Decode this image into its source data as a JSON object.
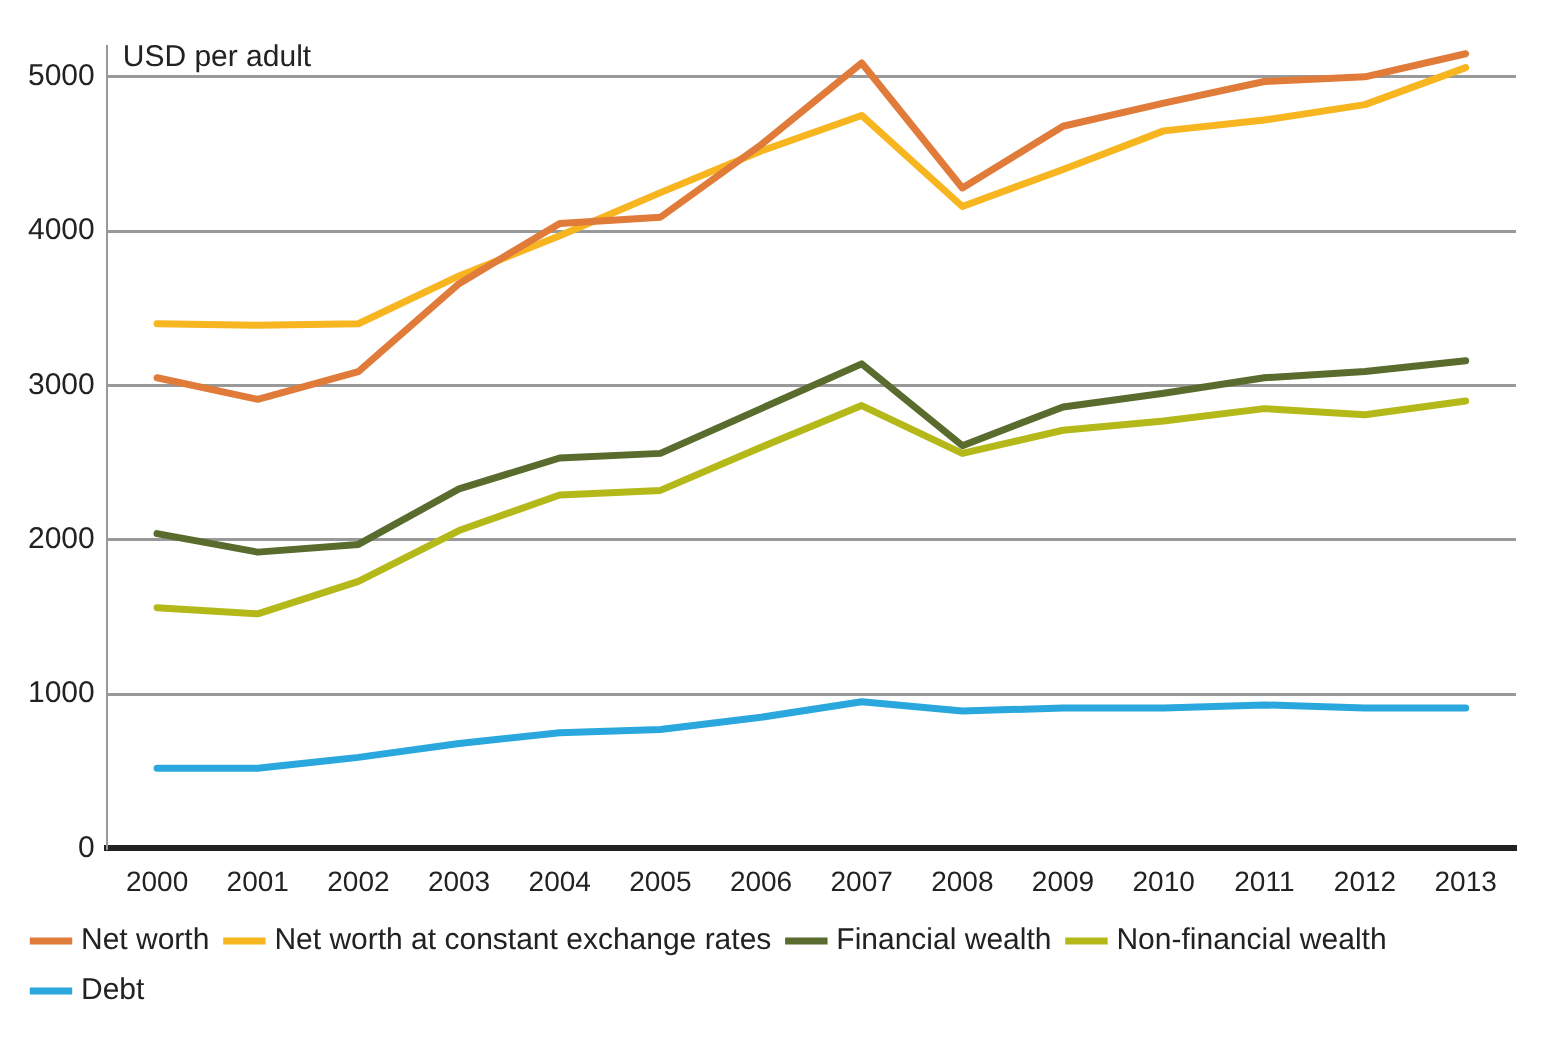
{
  "chart_data": {
    "type": "line",
    "ylabel": "USD per adult",
    "categories": [
      "2000",
      "2001",
      "2002",
      "2003",
      "2004",
      "2005",
      "2006",
      "2007",
      "2008",
      "2009",
      "2010",
      "2011",
      "2012",
      "2013"
    ],
    "series": [
      {
        "name": "Net worth",
        "color": "#e07b39",
        "values": [
          3050,
          2910,
          3090,
          3660,
          4050,
          4090,
          4560,
          5090,
          4280,
          4680,
          4830,
          4970,
          5000,
          5150
        ]
      },
      {
        "name": "Net worth at constant exchange rates",
        "color": "#f7b520",
        "values": [
          3400,
          3390,
          3400,
          3710,
          3970,
          4250,
          4520,
          4750,
          4160,
          4400,
          4650,
          4720,
          4820,
          5060
        ]
      },
      {
        "name": "Financial wealth",
        "color": "#5a6b2e",
        "values": [
          2040,
          1920,
          1970,
          2330,
          2530,
          2560,
          2850,
          3140,
          2610,
          2860,
          2950,
          3050,
          3090,
          3160
        ]
      },
      {
        "name": "Non-financial wealth",
        "color": "#b5b819",
        "values": [
          1560,
          1520,
          1730,
          2060,
          2290,
          2320,
          2600,
          2870,
          2560,
          2710,
          2770,
          2850,
          2810,
          2900
        ]
      },
      {
        "name": "Debt",
        "color": "#2aa8de",
        "values": [
          520,
          520,
          590,
          680,
          750,
          770,
          850,
          950,
          890,
          910,
          910,
          930,
          910,
          910
        ]
      }
    ],
    "ylim": [
      0,
      5200
    ],
    "yticks": [
      0,
      1000,
      2000,
      3000,
      4000,
      5000
    ],
    "grid": "y",
    "legend": "bottom",
    "marker": "none",
    "line_style": "solid"
  }
}
